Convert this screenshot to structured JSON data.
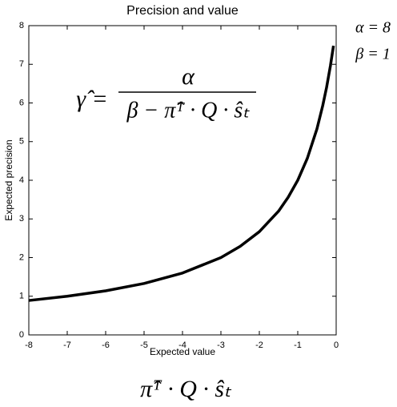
{
  "chart_data": {
    "type": "line",
    "title": "Precision and value",
    "x_label": "Expected value",
    "y_label": "Expected precision",
    "x": [
      -8,
      -7,
      -6,
      -5,
      -4,
      -3,
      -2.5,
      -2,
      -1.5,
      -1.25,
      -1,
      -0.75,
      -0.5,
      -0.35,
      -0.25,
      -0.15,
      -0.07
    ],
    "values": [
      0.89,
      1,
      1.14,
      1.33,
      1.6,
      2,
      2.29,
      2.67,
      3.2,
      3.56,
      4,
      4.57,
      5.33,
      5.93,
      6.4,
      6.96,
      7.48
    ],
    "color": "#000000",
    "xlim": [
      -8,
      0
    ],
    "ylim": [
      0,
      8
    ],
    "xticks": [
      -8,
      -7,
      -6,
      -5,
      -4,
      -3,
      -2,
      -1,
      0
    ],
    "yticks": [
      0,
      1,
      2,
      3,
      4,
      5,
      6,
      7,
      8
    ],
    "annotations": {
      "formula_lhs": "γ̂ =",
      "formula_numerator": "α",
      "formula_denominator": "β − π̂ᵀ · Q · ŝₜ",
      "alpha": "α = 8",
      "beta": "β = 1",
      "x_formula": "π̂ᵀ · Q · ŝₜ"
    }
  }
}
